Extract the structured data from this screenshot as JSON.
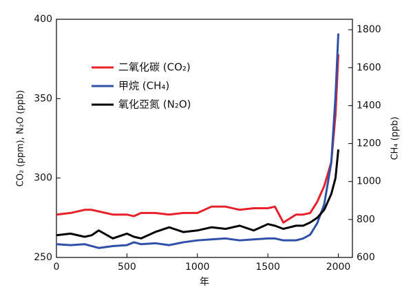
{
  "chart_data": {
    "type": "line",
    "xlabel": "年",
    "ylabel": "CO₂ (ppm), N₂O (ppb)",
    "y2label": "CH₄ (ppb)",
    "x": [
      0,
      100,
      200,
      250,
      300,
      400,
      500,
      550,
      600,
      700,
      800,
      900,
      1000,
      1100,
      1200,
      1300,
      1400,
      1500,
      1550,
      1610,
      1700,
      1750,
      1800,
      1850,
      1900,
      1950,
      1980,
      2000
    ],
    "series": [
      {
        "name": "二氧化碳 (CO₂)",
        "color": "#e8202a",
        "values": [
          277,
          278,
          280,
          280,
          279,
          277,
          277,
          276,
          278,
          278,
          277,
          278,
          278,
          282,
          282,
          280,
          281,
          281,
          282,
          272,
          277,
          277,
          278,
          285,
          295,
          310,
          340,
          378
        ]
      },
      {
        "name": "甲烷 (CH₄)",
        "color": "#2f4fa8",
        "axis": "y2",
        "values": [
          670,
          665,
          670,
          660,
          650,
          660,
          665,
          680,
          670,
          675,
          665,
          680,
          690,
          695,
          700,
          690,
          695,
          700,
          700,
          690,
          690,
          700,
          720,
          780,
          880,
          1100,
          1450,
          1780
        ]
      },
      {
        "name": "氧化亞氮 (N₂O)",
        "color": "#000000",
        "values": [
          264,
          265,
          263,
          264,
          267,
          262,
          265,
          263,
          262,
          266,
          269,
          266,
          267,
          269,
          268,
          270,
          267,
          271,
          270,
          268,
          270,
          270,
          272,
          275,
          280,
          290,
          300,
          318
        ]
      }
    ],
    "xlim": [
      0,
      2100
    ],
    "xticks": [
      0,
      500,
      1000,
      1500,
      2000
    ],
    "ylim": [
      250,
      400
    ],
    "yticks": [
      250,
      300,
      350,
      400
    ],
    "y2lim": [
      600,
      1855
    ],
    "y2ticks": [
      600,
      800,
      1000,
      1200,
      1400,
      1600,
      1800
    ],
    "legend": "upper left"
  }
}
